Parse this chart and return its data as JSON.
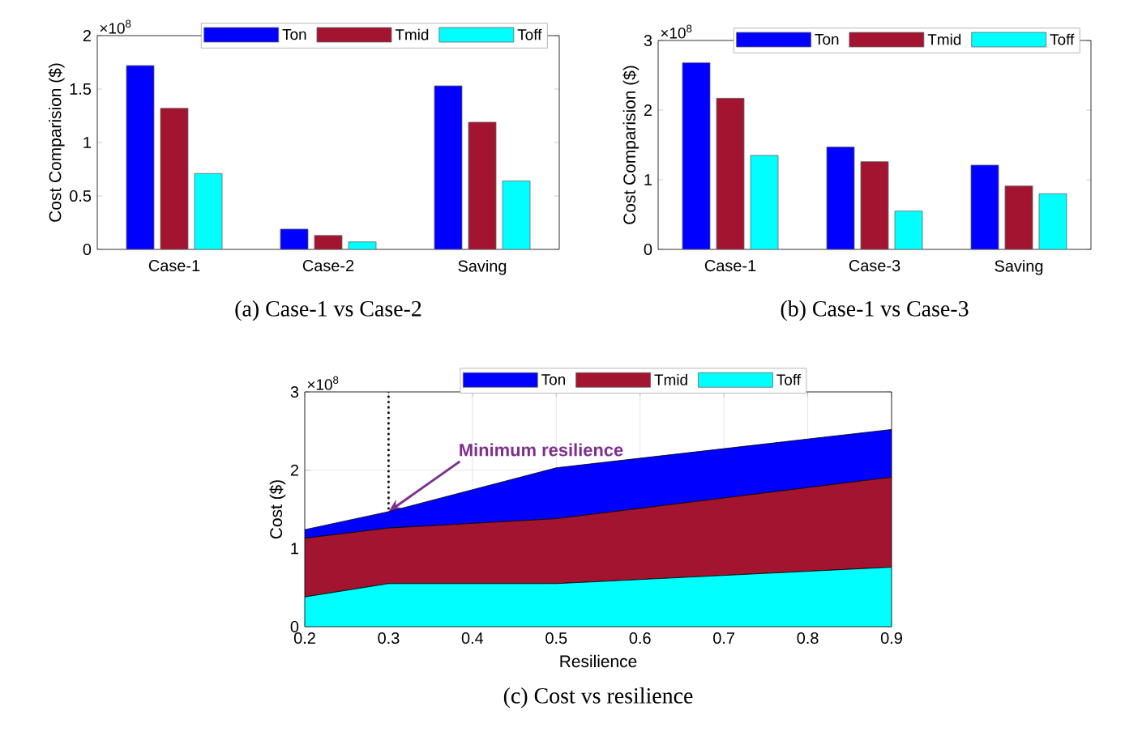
{
  "chart_data": [
    {
      "type": "bar",
      "title": "(a) Case-1 vs Case-2",
      "ylabel": "Cost Comparision ($)",
      "annotations": [
        "×10$^{8}$"
      ],
      "categories": [
        "Case-1",
        "Case-2",
        "Saving"
      ],
      "series": [
        {
          "name": "Ton",
          "color": "#0000ff",
          "values": [
            1.72,
            0.19,
            1.53
          ]
        },
        {
          "name": "Tmid",
          "color": "#a2142f",
          "values": [
            1.32,
            0.13,
            1.19
          ]
        },
        {
          "name": "Toff",
          "color": "#00ffff",
          "values": [
            0.71,
            0.07,
            0.64
          ]
        }
      ],
      "ylim": [
        0,
        2
      ],
      "yticks": [
        0,
        0.5,
        1,
        1.5,
        2
      ],
      "legend": "top right"
    },
    {
      "type": "bar",
      "title": "(b)   Case-1 vs Case-3",
      "ylabel": "Cost Comparision ($)",
      "annotations": [
        "×10$^{8}$"
      ],
      "categories": [
        "Case-1",
        "Case-3",
        "Saving"
      ],
      "series": [
        {
          "name": "Ton",
          "color": "#0000ff",
          "values": [
            2.68,
            1.47,
            1.21
          ]
        },
        {
          "name": "Tmid",
          "color": "#a2142f",
          "values": [
            2.17,
            1.26,
            0.91
          ]
        },
        {
          "name": "Toff",
          "color": "#00ffff",
          "values": [
            1.35,
            0.55,
            0.8
          ]
        }
      ],
      "ylim": [
        0,
        3
      ],
      "yticks": [
        0,
        1,
        2,
        3
      ],
      "legend": "top right"
    },
    {
      "type": "area",
      "stacked": true,
      "title": "(c) Cost vs resilience",
      "xlabel": "Resilience",
      "ylabel": "Cost ($)",
      "annotations": [
        "×10$^{8}$",
        {
          "text": "Minimum resilience",
          "x": 0.3,
          "y": 1.47
        }
      ],
      "x": [
        0.2,
        0.3,
        0.5,
        0.9
      ],
      "series": [
        {
          "name": "Toff",
          "color": "#00ffff",
          "values": [
            0.38,
            0.55,
            0.55,
            0.76
          ]
        },
        {
          "name": "Tmid",
          "color": "#a2142f",
          "values": [
            0.75,
            0.71,
            0.83,
            1.15
          ]
        },
        {
          "name": "Ton",
          "color": "#0000ff",
          "values": [
            0.11,
            0.21,
            0.65,
            0.61
          ]
        }
      ],
      "xlim": [
        0.2,
        0.9
      ],
      "xticks": [
        0.2,
        0.3,
        0.4,
        0.5,
        0.6,
        0.7,
        0.8,
        0.9
      ],
      "ylim": [
        0,
        3
      ],
      "yticks": [
        0,
        1,
        2,
        3
      ],
      "grid": true,
      "legend": "top",
      "ref_lines": [
        {
          "axis": "x",
          "value": 0.3,
          "color": "#000000",
          "line_style": "dotted"
        }
      ]
    }
  ]
}
